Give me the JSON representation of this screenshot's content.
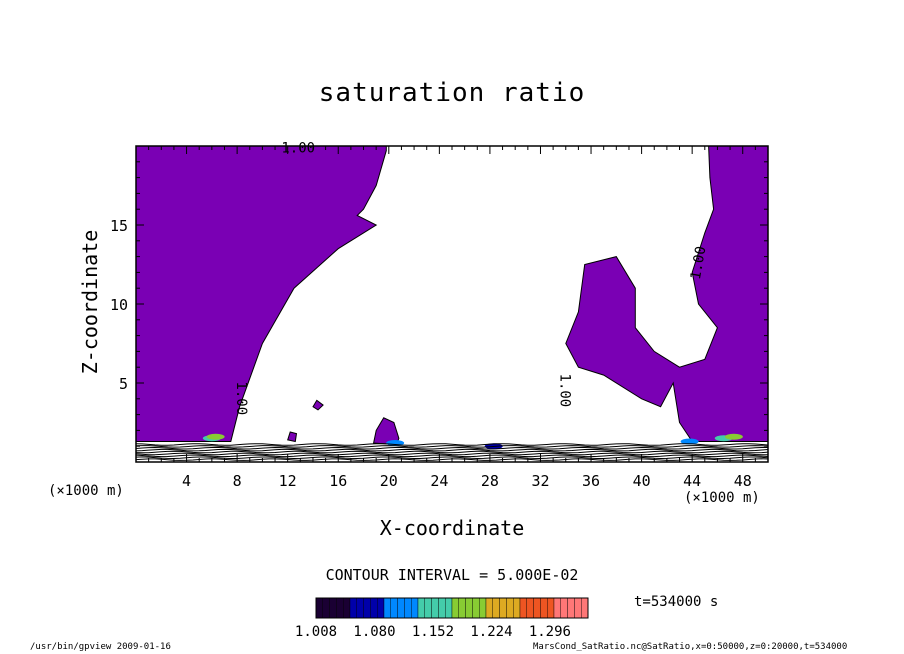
{
  "chart_data": {
    "type": "contour",
    "title": "saturation ratio",
    "xlabel": "X-coordinate",
    "ylabel": "Z-coordinate",
    "x_unit": "(×1000 m)",
    "xlim": [
      0,
      50
    ],
    "ylim": [
      0,
      20
    ],
    "x_ticks": [
      4,
      8,
      12,
      16,
      20,
      24,
      28,
      32,
      36,
      40,
      44,
      48
    ],
    "y_ticks": [
      5,
      10,
      15
    ],
    "contour_labels": [
      "1.00",
      "1.00",
      "1.00",
      "1.00"
    ],
    "contour_interval_text": "CONTOUR INTERVAL = 5.000E-02",
    "colorbar": {
      "ticks": [
        "1.008",
        "1.080",
        "1.152",
        "1.224",
        "1.296"
      ],
      "min": 1.008,
      "max": 1.296,
      "colors": [
        "#1a0033",
        "#0000aa",
        "#0088ff",
        "#44ccaa",
        "#88cc33",
        "#ddaa22",
        "#ee5522",
        "#ff7777"
      ]
    },
    "shaded_region_color": "#7a00b4",
    "shaded_region_meaning": ""
  },
  "time_label": "t=534000 s",
  "footer": {
    "left": "/usr/bin/gpview  2009-01-16",
    "right": "MarsCond_SatRatio.nc@SatRatio,x=0:50000,z=0:20000,t=534000"
  }
}
